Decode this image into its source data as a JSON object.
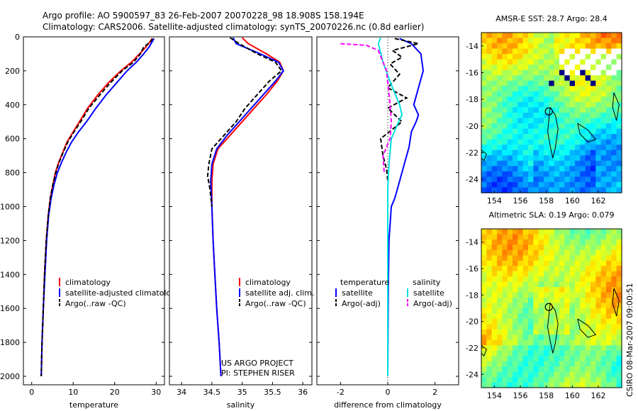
{
  "header": {
    "line1": "Argo profile: AO 5900597_83 26-Feb-2007 20070228_98 18.908S 158.194E",
    "line2": "Climatology: CARS2006. Satellite-adjusted climatology: synTS_20070226.nc (0.8d earlier)"
  },
  "footer": {
    "credit": "CSIRO 08-Mar-2007 09:00:51",
    "project_line1": "US ARGO PROJECT",
    "project_line2": "PI: STEPHEN RISER"
  },
  "colors": {
    "climatology": "#ff0000",
    "satellite": "#0000ff",
    "argo": "#000000",
    "sal_satellite": "#00e0e0",
    "sal_argo": "#ff00ff"
  },
  "chart_data": [
    {
      "type": "line",
      "title": "",
      "xlabel": "temperature",
      "ylabel": "",
      "xlim": [
        -2,
        32
      ],
      "ylim": [
        2050,
        0
      ],
      "x_ticks": [
        0,
        10,
        20,
        30
      ],
      "x_tick_labels": [
        "0",
        "10",
        "20",
        "30"
      ],
      "y_ticks": [
        0,
        200,
        400,
        600,
        800,
        1000,
        1200,
        1400,
        1600,
        1800,
        2000
      ],
      "y_tick_labels": [
        "0",
        "200",
        "400",
        "600",
        "800",
        "1000",
        "1200",
        "1400",
        "1600",
        "1800",
        "2000"
      ],
      "legend": [
        "climatology",
        "satellite-adjusted climatology",
        "Argo(..raw -QC)"
      ],
      "series": [
        {
          "name": "climatology",
          "color": "#ff0000",
          "dash": "",
          "x": [
            29.0,
            28.5,
            27.5,
            26.0,
            24.0,
            21.5,
            18.5,
            16.0,
            13.5,
            11.5,
            10.0,
            8.5,
            7.5,
            6.5,
            5.7,
            5.1,
            4.5,
            4.0,
            3.5,
            3.1,
            2.8,
            2.5,
            2.3
          ],
          "y": [
            10,
            30,
            60,
            100,
            150,
            200,
            270,
            340,
            420,
            500,
            560,
            620,
            680,
            740,
            800,
            870,
            950,
            1050,
            1200,
            1400,
            1600,
            1800,
            2000
          ]
        },
        {
          "name": "satellite-adjusted climatology",
          "color": "#0000ff",
          "dash": "",
          "x": [
            29.5,
            29.0,
            28.3,
            27.0,
            25.2,
            23.0,
            20.5,
            18.0,
            15.5,
            13.2,
            11.3,
            9.6,
            8.3,
            7.2,
            6.2,
            5.4,
            4.7,
            4.1,
            3.6,
            3.2,
            2.8,
            2.5,
            2.3
          ],
          "y": [
            10,
            30,
            60,
            100,
            150,
            200,
            270,
            340,
            420,
            500,
            560,
            620,
            680,
            740,
            800,
            870,
            950,
            1050,
            1200,
            1400,
            1600,
            1800,
            2000
          ]
        },
        {
          "name": "Argo(..raw -QC)",
          "color": "#000000",
          "dash": "6,3",
          "x": [
            29.2,
            28.6,
            27.0,
            26.2,
            24.5,
            21.8,
            19.0,
            16.5,
            13.8,
            11.8,
            10.2,
            8.7,
            7.6,
            6.6,
            5.8,
            5.1,
            4.5,
            4.0,
            3.5,
            3.1,
            2.8,
            2.5,
            2.3
          ],
          "y": [
            10,
            30,
            60,
            100,
            150,
            200,
            270,
            340,
            420,
            500,
            560,
            620,
            680,
            740,
            800,
            870,
            950,
            1050,
            1200,
            1400,
            1600,
            1800,
            2000
          ]
        }
      ]
    },
    {
      "type": "line",
      "title": "",
      "xlabel": "salinity",
      "ylabel": "",
      "xlim": [
        33.8,
        36.15
      ],
      "ylim": [
        2050,
        0
      ],
      "x_ticks": [
        34,
        34.5,
        35,
        35.5,
        36
      ],
      "x_tick_labels": [
        "34",
        "34.5",
        "35",
        "35.5",
        "36"
      ],
      "legend": [
        "climatology",
        "satellite adj. clim.",
        "Argo(..raw -QC)"
      ],
      "series": [
        {
          "name": "climatology",
          "color": "#ff0000",
          "dash": "",
          "x": [
            35.0,
            35.1,
            35.4,
            35.62,
            35.68,
            35.58,
            35.4,
            35.2,
            35.0,
            34.8,
            34.6,
            34.52,
            34.5,
            34.5,
            34.52,
            34.55,
            34.58,
            34.62,
            34.65
          ],
          "y": [
            5,
            40,
            100,
            150,
            200,
            260,
            340,
            420,
            500,
            580,
            660,
            750,
            850,
            1000,
            1200,
            1400,
            1600,
            1800,
            2000
          ]
        },
        {
          "name": "satellite adj. clim.",
          "color": "#0000ff",
          "dash": "",
          "x": [
            34.85,
            34.9,
            35.3,
            35.6,
            35.68,
            35.55,
            35.35,
            35.15,
            34.95,
            34.75,
            34.58,
            34.5,
            34.48,
            34.5,
            34.52,
            34.55,
            34.58,
            34.62,
            34.65
          ],
          "y": [
            5,
            40,
            100,
            150,
            200,
            260,
            340,
            420,
            500,
            580,
            660,
            750,
            850,
            1000,
            1200,
            1400,
            1600,
            1800,
            2000
          ]
        },
        {
          "name": "Argo(..raw -QC)",
          "color": "#000000",
          "dash": "6,3",
          "x": [
            34.8,
            34.95,
            35.25,
            35.55,
            35.65,
            35.45,
            35.25,
            35.05,
            34.9,
            34.7,
            34.5,
            34.45,
            34.43,
            34.47,
            34.5
          ],
          "y": [
            5,
            40,
            100,
            150,
            200,
            260,
            340,
            420,
            500,
            580,
            660,
            750,
            820,
            900,
            1000
          ]
        }
      ]
    },
    {
      "type": "line",
      "title": "",
      "xlabel": "difference from climatology",
      "ylabel": "",
      "xlim": [
        -3,
        3
      ],
      "ylim": [
        2050,
        0
      ],
      "x_ticks": [
        -2,
        0,
        2
      ],
      "x_tick_labels": [
        "-2",
        "0",
        "2"
      ],
      "legend_header_left": "temperature",
      "legend_header_right": "salinity",
      "legend": [
        "satellite",
        "Argo(-adj)",
        "satellite",
        "Argo(-adj)"
      ],
      "series": [
        {
          "name": "temperature satellite",
          "color": "#0000ff",
          "dash": "",
          "x": [
            0.5,
            1.0,
            1.4,
            1.5,
            1.3,
            1.1,
            1.3,
            1.2,
            1.0,
            0.9,
            0.7,
            0.5,
            0.3,
            0.15,
            0.05,
            0.02,
            0.0
          ],
          "y": [
            10,
            40,
            100,
            200,
            300,
            400,
            460,
            500,
            560,
            650,
            750,
            850,
            950,
            1000,
            1200,
            1500,
            2000
          ]
        },
        {
          "name": "temperature Argo(-adj)",
          "color": "#000000",
          "dash": "6,3",
          "x": [
            0.3,
            1.3,
            0.2,
            0.6,
            0.1,
            0.5,
            0.0,
            0.8,
            0.0,
            0.6,
            -0.3,
            -0.2,
            -0.05,
            0.0
          ],
          "y": [
            10,
            40,
            80,
            120,
            160,
            220,
            300,
            360,
            420,
            500,
            600,
            700,
            780,
            850
          ]
        },
        {
          "name": "salinity satellite",
          "color": "#00e0e0",
          "dash": "",
          "x": [
            -0.3,
            -0.4,
            -0.2,
            0.2,
            0.5,
            0.6,
            0.4,
            0.15,
            0.05,
            0.0,
            0.0,
            0.0
          ],
          "y": [
            5,
            40,
            150,
            300,
            400,
            460,
            520,
            600,
            750,
            900,
            1400,
            2000
          ]
        },
        {
          "name": "salinity Argo(-adj)",
          "color": "#ff00ff",
          "dash": "6,3",
          "x": [
            -2.0,
            -0.9,
            -0.4,
            -0.05,
            0.1,
            0.15,
            0.1,
            -0.2,
            -0.15
          ],
          "y": [
            40,
            50,
            80,
            200,
            400,
            500,
            600,
            700,
            800
          ]
        }
      ]
    },
    {
      "type": "heatmap",
      "title": "AMSR-E SST: 28.7 Argo: 28.4",
      "xlim": [
        153,
        163.8
      ],
      "ylim": [
        -25,
        -13
      ],
      "x_ticks": [
        154,
        156,
        158,
        160,
        162
      ],
      "x_tick_labels": [
        "154",
        "156",
        "158",
        "160",
        "162"
      ],
      "y_ticks": [
        -14,
        -16,
        -18,
        -20,
        -22,
        -24
      ],
      "y_tick_labels": [
        "-14",
        "-16",
        "-18",
        "-20",
        "-22",
        "-24"
      ],
      "marker": [
        158.194,
        -18.908
      ]
    },
    {
      "type": "heatmap",
      "title": "Altimetric SLA: 0.19 Argo: 0.079",
      "xlim": [
        153,
        163.8
      ],
      "ylim": [
        -25,
        -13
      ],
      "x_ticks": [
        154,
        156,
        158,
        160,
        162
      ],
      "x_tick_labels": [
        "154",
        "156",
        "158",
        "160",
        "162"
      ],
      "y_ticks": [
        -14,
        -16,
        -18,
        -20,
        -22,
        -24
      ],
      "y_tick_labels": [
        "-14",
        "-16",
        "-18",
        "-20",
        "-22",
        "-24"
      ],
      "marker": [
        158.194,
        -18.908
      ]
    }
  ]
}
